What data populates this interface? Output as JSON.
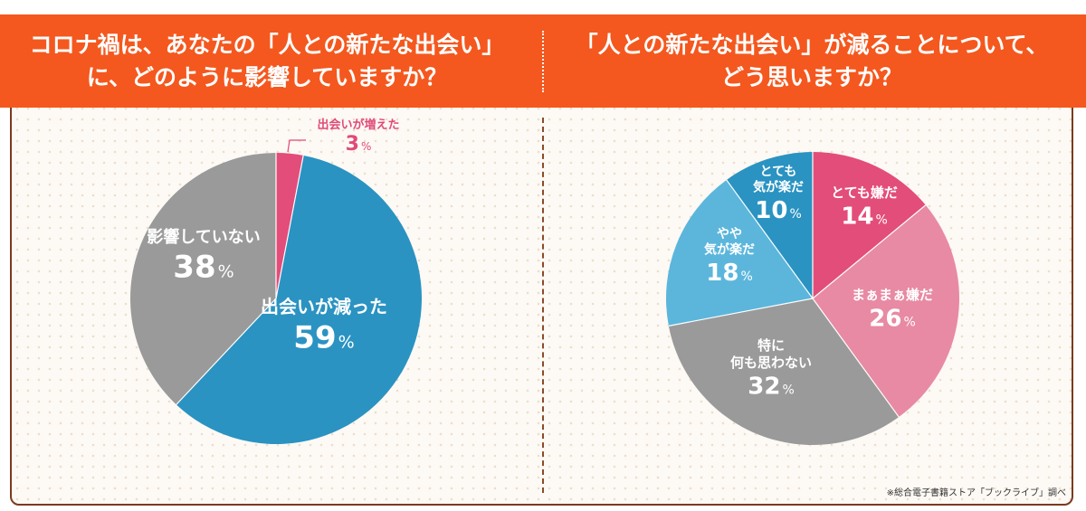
{
  "titles": {
    "left": "コロナ禍は、あなたの「人との新たな出会い」\nに、どのように影響していますか？",
    "right": "「人との新たな出会い」が減ることについて、\nどう思いますか？"
  },
  "source": "※総合電子書籍ストア「ブックライブ」調べ",
  "colors": {
    "header": "#f4581e",
    "frame": "#7a3a1e",
    "accent_pink": "#e04a78"
  },
  "chart_data": [
    {
      "type": "pie",
      "start": "top",
      "direction": "clockwise",
      "labels": [
        "出会いが増えた",
        "出会いが減った",
        "影響していない"
      ],
      "values": [
        3,
        59,
        38
      ],
      "unit": "%",
      "colors": [
        "#e34d79",
        "#2a93c2",
        "#9a9a9a"
      ]
    },
    {
      "type": "pie",
      "start": "top",
      "direction": "clockwise",
      "labels": [
        "とても嫌だ",
        "まぁまぁ嫌だ",
        "特に\n何も思わない",
        "やや\n気が楽だ",
        "とても\n気が楽だ"
      ],
      "values": [
        14,
        26,
        32,
        18,
        10
      ],
      "unit": "%",
      "colors": [
        "#e34d79",
        "#e88aa3",
        "#9a9a9a",
        "#5cb6dc",
        "#2a93c2"
      ]
    }
  ]
}
